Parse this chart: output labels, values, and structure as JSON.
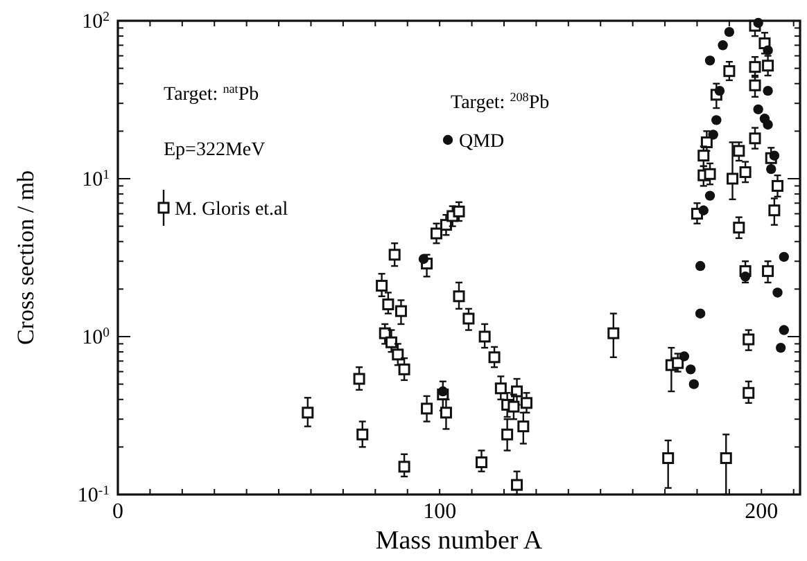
{
  "chart_data": {
    "type": "scatter",
    "xlabel": "Mass number A",
    "ylabel": "Cross section / mb",
    "xlim": [
      0,
      212
    ],
    "ylim": [
      0.1,
      100
    ],
    "log": "y",
    "xticks": [
      0,
      {
        "value": 10,
        "label": null
      },
      {
        "value": 20,
        "label": null
      },
      {
        "value": 30,
        "label": null
      },
      {
        "value": 40,
        "label": null
      },
      {
        "value": 50,
        "label": null
      },
      {
        "value": 60,
        "label": null
      },
      {
        "value": 70,
        "label": null
      },
      {
        "value": 80,
        "label": null
      },
      {
        "value": 90,
        "label": null
      },
      100,
      {
        "value": 110,
        "label": null
      },
      {
        "value": 120,
        "label": null
      },
      {
        "value": 130,
        "label": null
      },
      {
        "value": 140,
        "label": null
      },
      {
        "value": 150,
        "label": null
      },
      {
        "value": 160,
        "label": null
      },
      {
        "value": 170,
        "label": null
      },
      {
        "value": 180,
        "label": null
      },
      {
        "value": 190,
        "label": null
      },
      200,
      {
        "value": 210,
        "label": null
      }
    ],
    "yticks": [
      {
        "value": 0.1,
        "label": "10$^{-1}$"
      },
      {
        "value": 1,
        "label": "10$^{0}$"
      },
      {
        "value": 10,
        "label": "10$^{1}$"
      },
      {
        "value": 100,
        "label": "10$^{2}$"
      }
    ],
    "grid": false,
    "legend": "top left",
    "annotations": [
      "Target: $^{nat}$Pb",
      "Ep=322MeV",
      "Target: $^{208}$Pb"
    ],
    "series": [
      {
        "name": "M. Gloris et.al",
        "color": "#111111",
        "marker": "square",
        "x": [
          59,
          75,
          76,
          86,
          82,
          84,
          88,
          83,
          85,
          87,
          89,
          89,
          96,
          96,
          99,
          102,
          104,
          106,
          106,
          109,
          114,
          117,
          119,
          124,
          121,
          123,
          127,
          126,
          121,
          124,
          113,
          101,
          102,
          154,
          172,
          174,
          171,
          189,
          196,
          196,
          190,
          186,
          183,
          182,
          182,
          184,
          180,
          193,
          191,
          195,
          193,
          198,
          201,
          198,
          202,
          198,
          198,
          203,
          205,
          204,
          195,
          202
        ],
        "values": [
          0.33,
          0.54,
          0.24,
          3.3,
          2.1,
          1.6,
          1.45,
          1.05,
          0.92,
          0.77,
          0.62,
          0.15,
          0.35,
          2.9,
          4.5,
          5.1,
          5.8,
          6.2,
          1.8,
          1.3,
          1,
          0.74,
          0.47,
          0.45,
          0.37,
          0.36,
          0.38,
          0.27,
          0.24,
          0.115,
          0.16,
          0.43,
          0.33,
          1.05,
          0.66,
          0.68,
          0.17,
          0.17,
          0.96,
          0.44,
          48,
          34,
          17,
          14,
          10.5,
          10.7,
          6,
          15,
          10,
          11,
          4.9,
          93,
          72,
          51,
          52,
          39,
          18,
          13.5,
          9,
          6.3,
          2.6,
          2.6
        ],
        "errors": [
          [
            0.27,
            0.41
          ],
          [
            0.46,
            0.64
          ],
          [
            0.2,
            0.29
          ],
          [
            2.8,
            3.9
          ],
          [
            1.8,
            2.5
          ],
          [
            1.4,
            1.9
          ],
          [
            1.2,
            1.7
          ],
          [
            0.9,
            1.2
          ],
          [
            0.8,
            1.1
          ],
          [
            0.66,
            0.9
          ],
          [
            0.53,
            0.73
          ],
          [
            0.13,
            0.18
          ],
          [
            0.29,
            0.42
          ],
          [
            2.4,
            3.3
          ],
          [
            3.9,
            5.2
          ],
          [
            4.4,
            5.9
          ],
          [
            5,
            6.7
          ],
          [
            5.4,
            7.1
          ],
          [
            1.5,
            2.2
          ],
          [
            1.1,
            1.5
          ],
          [
            0.85,
            1.2
          ],
          [
            0.64,
            0.86
          ],
          [
            0.4,
            0.56
          ],
          [
            0.37,
            0.54
          ],
          [
            0.31,
            0.44
          ],
          [
            0.3,
            0.43
          ],
          [
            0.33,
            0.44
          ],
          [
            0.21,
            0.33
          ],
          [
            0.19,
            0.3
          ],
          [
            0.1,
            0.14
          ],
          [
            0.14,
            0.19
          ],
          [
            0.34,
            0.52
          ],
          [
            0.26,
            0.4
          ],
          [
            0.74,
            1.4
          ],
          [
            0.45,
            0.85
          ],
          [
            0.6,
            0.78
          ],
          [
            0.11,
            0.22
          ],
          [
            0.1,
            0.24
          ],
          [
            0.82,
            1.1
          ],
          [
            0.38,
            0.52
          ],
          [
            42,
            55
          ],
          [
            28,
            40
          ],
          [
            15,
            20
          ],
          [
            12,
            16
          ],
          [
            9,
            12
          ],
          [
            9.2,
            12.5
          ],
          [
            5.2,
            7
          ],
          [
            13,
            17
          ],
          [
            7.4,
            17
          ],
          [
            9.5,
            12.8
          ],
          [
            4.2,
            5.7
          ],
          [
            80,
            99
          ],
          [
            62,
            84
          ],
          [
            44,
            59
          ],
          [
            45,
            60
          ],
          [
            33,
            45
          ],
          [
            15.5,
            21
          ],
          [
            11.6,
            15.7
          ],
          [
            7.7,
            10.5
          ],
          [
            5.1,
            7.5
          ],
          [
            2.2,
            3
          ],
          [
            2.2,
            3
          ]
        ]
      },
      {
        "name": "QMD",
        "color": "#111111",
        "marker": "circle",
        "x": [
          176,
          178,
          179,
          181,
          206,
          207,
          205,
          195,
          190,
          188,
          184,
          187,
          186,
          185,
          184,
          182,
          181,
          199,
          201,
          202,
          202,
          199,
          204,
          203,
          207,
          202,
          95,
          101
        ],
        "values": [
          0.75,
          0.62,
          0.5,
          1.4,
          0.85,
          1.1,
          1.9,
          2.4,
          85,
          70,
          56,
          36,
          23.5,
          19,
          7.8,
          6.3,
          2.8,
          27.5,
          24,
          22,
          36,
          97,
          14,
          11.5,
          3.2,
          65,
          3.1,
          0.45
        ]
      }
    ]
  }
}
